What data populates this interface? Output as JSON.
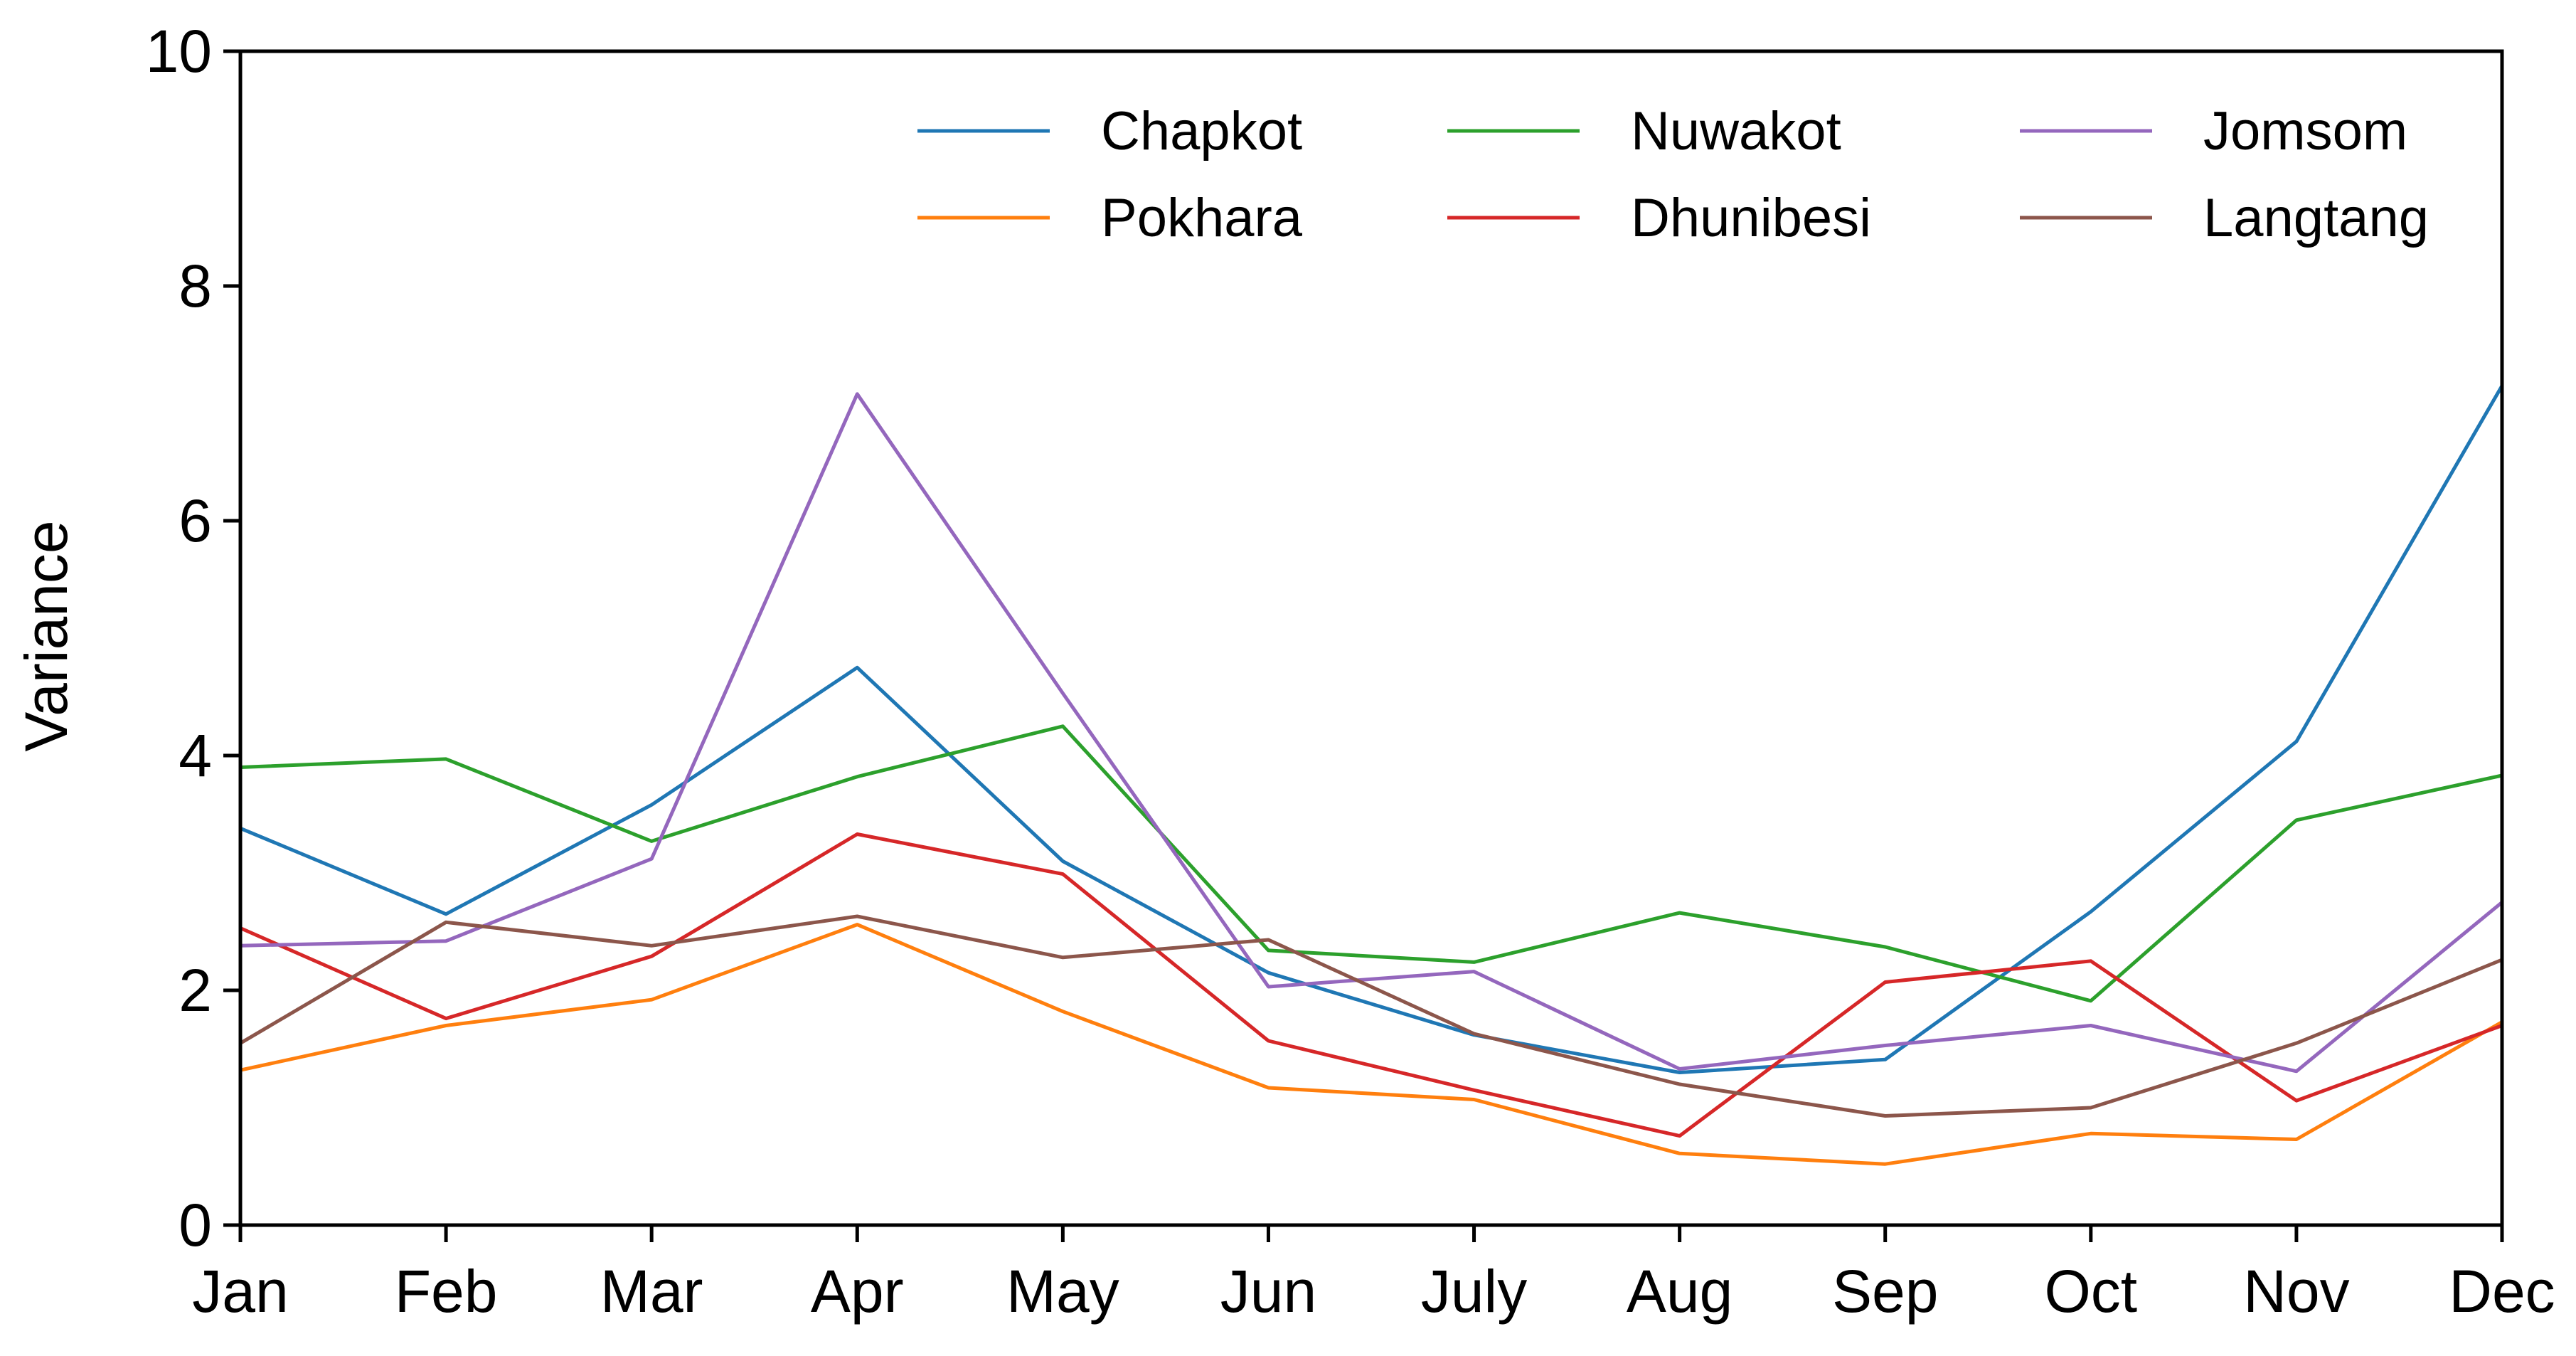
{
  "chart_data": {
    "type": "line",
    "title": "",
    "xlabel": "",
    "ylabel": "Variance",
    "categories": [
      "Jan",
      "Feb",
      "Mar",
      "Apr",
      "May",
      "Jun",
      "July",
      "Aug",
      "Sep",
      "Oct",
      "Nov",
      "Dec"
    ],
    "ylim": [
      0,
      10
    ],
    "yticks": [
      "0",
      "2",
      "4",
      "6",
      "8",
      "10"
    ],
    "grid": false,
    "legend": {
      "placement": "top-right",
      "columns": 3
    },
    "series": [
      {
        "name": "Chapkot",
        "color": "#1f77b4",
        "values": [
          3.38,
          2.65,
          3.58,
          4.75,
          3.1,
          2.15,
          1.62,
          1.3,
          1.41,
          2.67,
          4.12,
          7.15
        ]
      },
      {
        "name": "Pokhara",
        "color": "#ff7f0e",
        "values": [
          1.32,
          1.7,
          1.92,
          2.56,
          1.82,
          1.17,
          1.07,
          0.61,
          0.52,
          0.78,
          0.73,
          1.73
        ]
      },
      {
        "name": "Nuwakot",
        "color": "#2ca02c",
        "values": [
          3.9,
          3.97,
          3.27,
          3.82,
          4.25,
          2.34,
          2.24,
          2.66,
          2.37,
          1.91,
          3.45,
          3.83
        ]
      },
      {
        "name": "Dhunibesi",
        "color": "#d62728",
        "values": [
          2.53,
          1.76,
          2.29,
          3.33,
          2.99,
          1.57,
          1.15,
          0.76,
          2.07,
          2.25,
          1.06,
          1.7
        ]
      },
      {
        "name": "Jomsom",
        "color": "#9467bd",
        "values": [
          2.38,
          2.42,
          3.12,
          7.08,
          4.53,
          2.03,
          2.16,
          1.33,
          1.53,
          1.7,
          1.31,
          2.75
        ]
      },
      {
        "name": "Langtang",
        "color": "#8c564b",
        "values": [
          1.55,
          2.58,
          2.38,
          2.63,
          2.28,
          2.43,
          1.63,
          1.2,
          0.93,
          1.0,
          1.55,
          2.26
        ]
      }
    ]
  }
}
